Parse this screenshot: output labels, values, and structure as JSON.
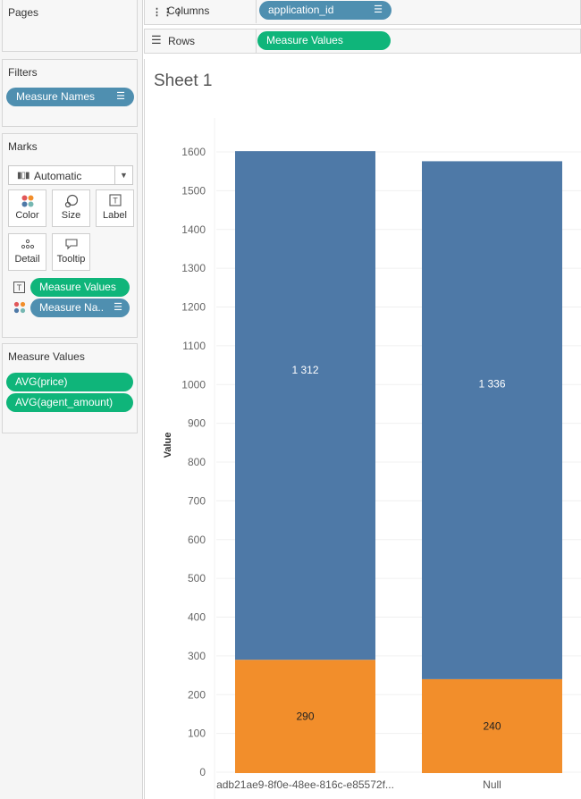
{
  "pages": {
    "title": "Pages"
  },
  "columns_shelf": {
    "label": "Columns",
    "pill": "application_id"
  },
  "rows_shelf": {
    "label": "Rows",
    "pill": "Measure Values"
  },
  "filters": {
    "title": "Filters",
    "pill": "Measure Names"
  },
  "marks": {
    "title": "Marks",
    "type_select": "Automatic",
    "buttons": [
      "Color",
      "Size",
      "Label",
      "Detail",
      "Tooltip"
    ],
    "encodings": [
      "Measure Values",
      "Measure Na.."
    ]
  },
  "measure_values": {
    "title": "Measure Values",
    "items": [
      "AVG(price)",
      "AVG(agent_amount)"
    ]
  },
  "sheet": {
    "title": "Sheet 1"
  },
  "colors": {
    "pill_blue": "#4f8fb0",
    "pill_green": "#0fb57a",
    "bar_blue": "#4e79a7",
    "bar_orange": "#f28e2b"
  },
  "chart_data": {
    "type": "bar",
    "stacked": true,
    "categories": [
      "adb21ae9-8f0e-48ee-816c-e85572f...",
      "Null"
    ],
    "series": [
      {
        "name": "AVG(agent_amount)",
        "color": "#f28e2b",
        "values": [
          290,
          240
        ],
        "labels": [
          "290",
          "240"
        ]
      },
      {
        "name": "AVG(price)",
        "color": "#4e79a7",
        "values": [
          1312,
          1336
        ],
        "labels": [
          "1 312",
          "1 336"
        ]
      }
    ],
    "ylabel": "Value",
    "ylim": [
      0,
      1600
    ],
    "yticks": [
      0,
      100,
      200,
      300,
      400,
      500,
      600,
      700,
      800,
      900,
      1000,
      1100,
      1200,
      1300,
      1400,
      1500,
      1600
    ],
    "grid": true
  }
}
